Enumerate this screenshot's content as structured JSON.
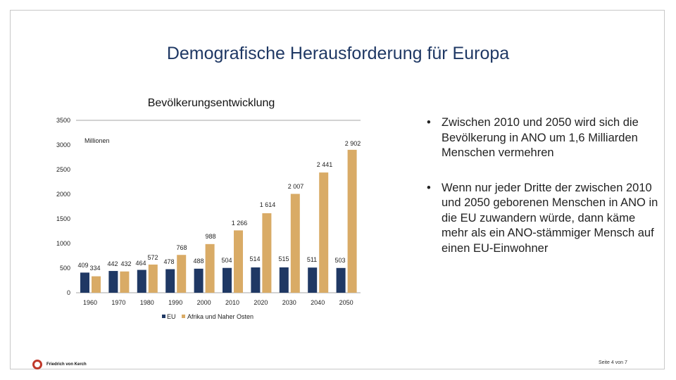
{
  "slide": {
    "title": "Demografische Herausforderung für Europa",
    "bullets": [
      "Zwischen 2010 und 2050 wird sich die Bevölkerung in ANO um 1,6 Milliarden Menschen vermehren",
      "Wenn nur jeder Dritte der zwischen 2010 und 2050 geborenen Menschen in ANO in die EU zuwandern würde, dann käme mehr als ein ANO-stämmiger Mensch auf einen EU-Einwohner"
    ],
    "logo_text": "Friedrich von Kerch",
    "page_number": "Seite 4 von 7"
  },
  "colors": {
    "eu": "#1f3864",
    "ano": "#d9ab66",
    "title": "#1f3864",
    "axis": "#a6a6a6"
  },
  "chart_data": {
    "type": "bar",
    "title": "Bevölkerungsentwicklung",
    "unit_label": "Millionen",
    "categories": [
      "1960",
      "1970",
      "1980",
      "1990",
      "2000",
      "2010",
      "2020",
      "2030",
      "2040",
      "2050"
    ],
    "series": [
      {
        "name": "EU",
        "values": [
          409,
          442,
          464,
          478,
          488,
          504,
          514,
          515,
          511,
          503
        ],
        "labels": [
          "409",
          "442",
          "464",
          "478",
          "488",
          "504",
          "514",
          "515",
          "511",
          "503"
        ]
      },
      {
        "name": "Afrika und Naher Osten",
        "values": [
          334,
          432,
          572,
          768,
          988,
          1266,
          1614,
          2007,
          2441,
          2902
        ],
        "labels": [
          "334",
          "432",
          "572",
          "768",
          "988",
          "1 266",
          "1 614",
          "2 007",
          "2 441",
          "2 902"
        ]
      }
    ],
    "ylim": [
      0,
      3500
    ],
    "yticks": [
      0,
      500,
      1000,
      1500,
      2000,
      2500,
      3000,
      3500
    ],
    "legend_position": "bottom"
  }
}
